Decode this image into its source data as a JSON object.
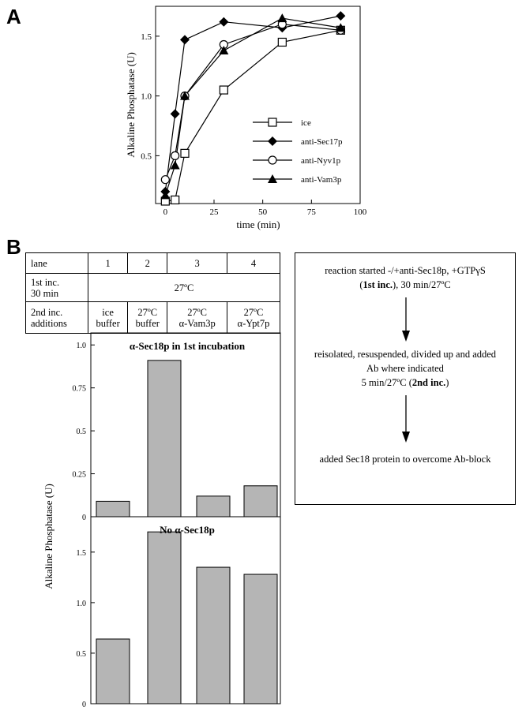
{
  "panels": {
    "a": "A",
    "b": "B"
  },
  "chart_data": [
    {
      "type": "line",
      "xlabel": "time (min)",
      "ylabel": "Alkaline Phosphatase (U)",
      "xlim": [
        -5,
        100
      ],
      "ylim": [
        0.1,
        1.75
      ],
      "xticks": [
        0,
        25,
        50,
        75,
        100
      ],
      "yticks": [
        0.5,
        1.0,
        1.5
      ],
      "ytick_labels": [
        "0.5",
        "1.0",
        "1.5"
      ],
      "legend": "inside-right",
      "series": [
        {
          "name": "ice",
          "marker": "square-open",
          "x": [
            0,
            5,
            10,
            30,
            60,
            90
          ],
          "y": [
            0.12,
            0.13,
            0.52,
            1.05,
            1.45,
            1.55
          ]
        },
        {
          "name": "anti-Sec17p",
          "marker": "diamond-filled",
          "x": [
            0,
            5,
            10,
            30,
            60,
            90
          ],
          "y": [
            0.2,
            0.85,
            1.47,
            1.62,
            1.57,
            1.67
          ]
        },
        {
          "name": "anti-Nyv1p",
          "marker": "circle-open",
          "x": [
            0,
            5,
            10,
            30,
            60,
            90
          ],
          "y": [
            0.3,
            0.5,
            1.0,
            1.43,
            1.6,
            1.55
          ]
        },
        {
          "name": "anti-Vam3p",
          "marker": "triangle-filled",
          "x": [
            0,
            5,
            10,
            30,
            60,
            90
          ],
          "y": [
            0.17,
            0.42,
            1.0,
            1.38,
            1.65,
            1.57
          ]
        }
      ]
    },
    {
      "type": "bar",
      "title": "α-Sec18p in 1st incubation",
      "categories": [
        "1",
        "2",
        "3",
        "4"
      ],
      "values": [
        0.09,
        0.91,
        0.12,
        0.18
      ],
      "ylim": [
        0,
        1.07
      ],
      "yticks": [
        0,
        0.25,
        0.5,
        0.75,
        1.0
      ],
      "ytick_labels": [
        "0",
        "0.25",
        "0.5",
        "0.75",
        "1.0"
      ],
      "bar_color": "#b5b5b5"
    },
    {
      "type": "bar",
      "title": "No α-Sec18p",
      "categories": [
        "1",
        "2",
        "3",
        "4"
      ],
      "values": [
        0.64,
        1.7,
        1.35,
        1.28
      ],
      "ylim": [
        0,
        1.85
      ],
      "yticks": [
        0,
        0.5,
        1.0,
        1.5
      ],
      "ytick_labels": [
        "0",
        "0.5",
        "1.0",
        "1.5"
      ],
      "bar_color": "#b5b5b5"
    }
  ],
  "b_ylabel": "Alkaline Phosphatase (U)",
  "table": {
    "lane_label": "lane",
    "lanes": [
      "1",
      "2",
      "3",
      "4"
    ],
    "inc1_label_1": "1st inc.",
    "inc1_label_2": "30 min",
    "inc1_value": "27ºC",
    "inc2_label_1": "2nd inc.",
    "inc2_label_2": "additions",
    "additions": [
      {
        "line1": "ice",
        "line2": "buffer"
      },
      {
        "line1": "27ºC",
        "line2": "buffer"
      },
      {
        "line1": "27ºC",
        "line2": "α-Vam3p"
      },
      {
        "line1": "27ºC",
        "line2": "α-Ypt7p"
      }
    ]
  },
  "flow": {
    "step1_line1": "reaction started -/+anti-Sec18p, +GTPγS",
    "step1_bold": "1st inc.",
    "step1_rest": "), 30 min/27ºC",
    "step2_line1": "reisolated, resuspended, divided up and added",
    "step2_line2": "Ab where indicated",
    "step2_line3": "5 min/27ºC (",
    "step2_bold": "2nd inc.",
    "step3": "added Sec18 protein to overcome Ab-block"
  }
}
